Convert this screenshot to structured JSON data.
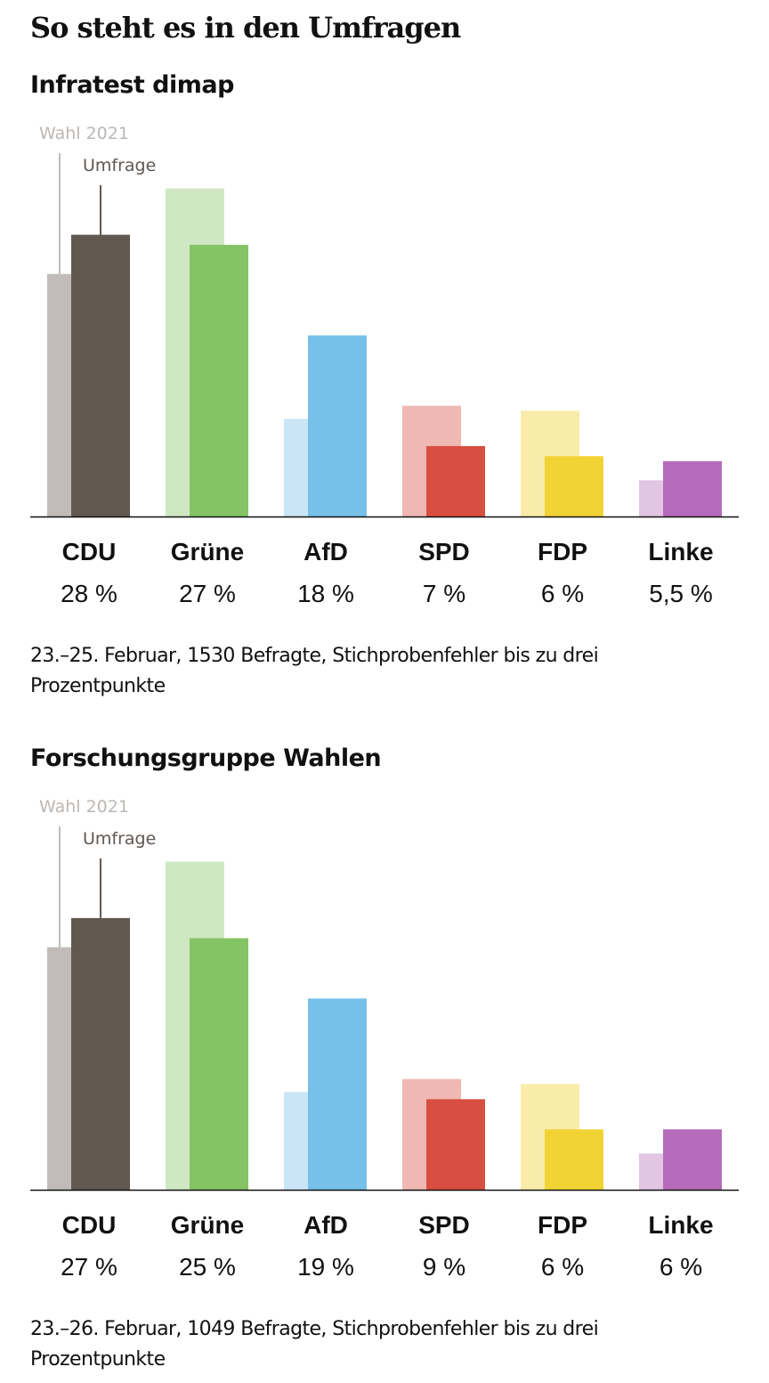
{
  "page": {
    "title": "So steht es in den Umfragen"
  },
  "legend": {
    "election_label": "Wahl 2021",
    "survey_label": "Umfrage"
  },
  "chart_data": [
    {
      "type": "bar",
      "title": "Infratest dimap",
      "categories": [
        "CDU",
        "Grüne",
        "AfD",
        "SPD",
        "FDP",
        "Linke"
      ],
      "series": [
        {
          "name": "Wahl 2021",
          "values": [
            24.1,
            32.6,
            9.7,
            11.0,
            10.5,
            3.6
          ],
          "colors": [
            "#c1bcb9",
            "#cfe7c3",
            "#c9e5f6",
            "#efb8b3",
            "#f9eba9",
            "#e1c5e2"
          ]
        },
        {
          "name": "Umfrage",
          "values": [
            28,
            27,
            18,
            7,
            6,
            5.5
          ],
          "colors": [
            "#615850",
            "#84c464",
            "#76c0e9",
            "#d84e40",
            "#f2d335",
            "#b56bb9"
          ]
        }
      ],
      "value_labels": [
        "28 %",
        "27 %",
        "18 %",
        "7 %",
        "6 %",
        "5,5 %"
      ],
      "ylim": [
        0,
        33
      ],
      "footnote": "23.–25. Februar, 1530 Befragte, Stichprobenfehler bis zu drei Prozentpunkte"
    },
    {
      "type": "bar",
      "title": "Forschungsgruppe Wahlen",
      "categories": [
        "CDU",
        "Grüne",
        "AfD",
        "SPD",
        "FDP",
        "Linke"
      ],
      "series": [
        {
          "name": "Wahl 2021",
          "values": [
            24.1,
            32.6,
            9.7,
            11.0,
            10.5,
            3.6
          ],
          "colors": [
            "#c1bcb9",
            "#cfe7c3",
            "#c9e5f6",
            "#efb8b3",
            "#f9eba9",
            "#e1c5e2"
          ]
        },
        {
          "name": "Umfrage",
          "values": [
            27,
            25,
            19,
            9,
            6,
            6
          ],
          "colors": [
            "#615850",
            "#84c464",
            "#76c0e9",
            "#d84e40",
            "#f2d335",
            "#b56bb9"
          ]
        }
      ],
      "value_labels": [
        "27 %",
        "25 %",
        "19 %",
        "9 %",
        "6 %",
        "6 %"
      ],
      "ylim": [
        0,
        33
      ],
      "footnote": "23.–26. Februar, 1049 Befragte, Stichprobenfehler bis zu drei Prozentpunkte"
    }
  ]
}
